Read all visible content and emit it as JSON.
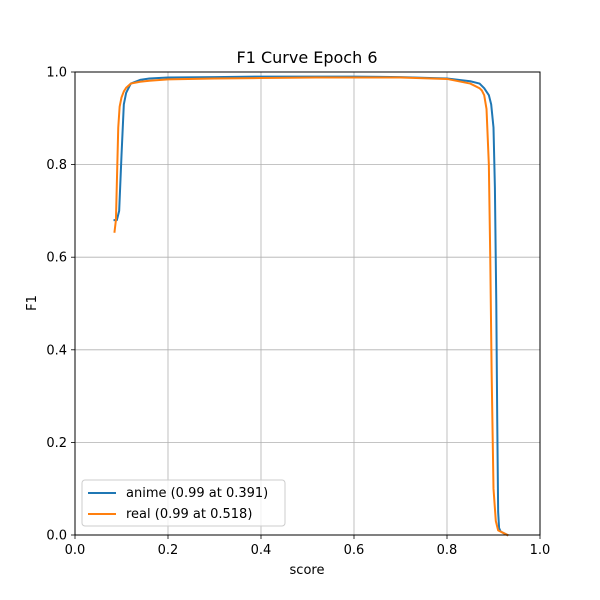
{
  "chart_data": {
    "type": "line",
    "title": "F1 Curve Epoch 6",
    "xlabel": "score",
    "ylabel": "F1",
    "xlim": [
      0.0,
      1.0
    ],
    "ylim": [
      0.0,
      1.0
    ],
    "xticks": [
      "0.0",
      "0.2",
      "0.4",
      "0.6",
      "0.8",
      "1.0"
    ],
    "yticks": [
      "0.0",
      "0.2",
      "0.4",
      "0.6",
      "0.8",
      "1.0"
    ],
    "grid": true,
    "legend_position": "lower-left",
    "series": [
      {
        "name": "anime (0.99 at 0.391)",
        "color": "#1f77b4",
        "x": [
          0.085,
          0.09,
          0.095,
          0.1,
          0.105,
          0.11,
          0.12,
          0.14,
          0.16,
          0.2,
          0.3,
          0.391,
          0.5,
          0.6,
          0.7,
          0.8,
          0.85,
          0.87,
          0.88,
          0.89,
          0.895,
          0.9,
          0.903,
          0.906,
          0.908,
          0.91,
          0.912,
          0.915,
          0.92,
          0.93
        ],
        "y": [
          0.68,
          0.68,
          0.7,
          0.82,
          0.93,
          0.955,
          0.975,
          0.983,
          0.986,
          0.988,
          0.989,
          0.99,
          0.99,
          0.99,
          0.989,
          0.986,
          0.98,
          0.975,
          0.965,
          0.95,
          0.93,
          0.88,
          0.75,
          0.5,
          0.25,
          0.05,
          0.015,
          0.008,
          0.005,
          0.0
        ]
      },
      {
        "name": "real (0.99 at 0.518)",
        "color": "#ff7f0e",
        "x": [
          0.085,
          0.088,
          0.09,
          0.093,
          0.096,
          0.1,
          0.105,
          0.11,
          0.12,
          0.14,
          0.16,
          0.2,
          0.3,
          0.4,
          0.518,
          0.6,
          0.7,
          0.8,
          0.85,
          0.87,
          0.875,
          0.88,
          0.885,
          0.89,
          0.893,
          0.896,
          0.9,
          0.905,
          0.91,
          0.92,
          0.93
        ],
        "y": [
          0.655,
          0.68,
          0.76,
          0.88,
          0.925,
          0.945,
          0.958,
          0.966,
          0.975,
          0.979,
          0.981,
          0.984,
          0.986,
          0.987,
          0.988,
          0.988,
          0.988,
          0.985,
          0.975,
          0.965,
          0.96,
          0.95,
          0.92,
          0.8,
          0.6,
          0.35,
          0.1,
          0.03,
          0.01,
          0.005,
          0.0
        ]
      }
    ]
  }
}
